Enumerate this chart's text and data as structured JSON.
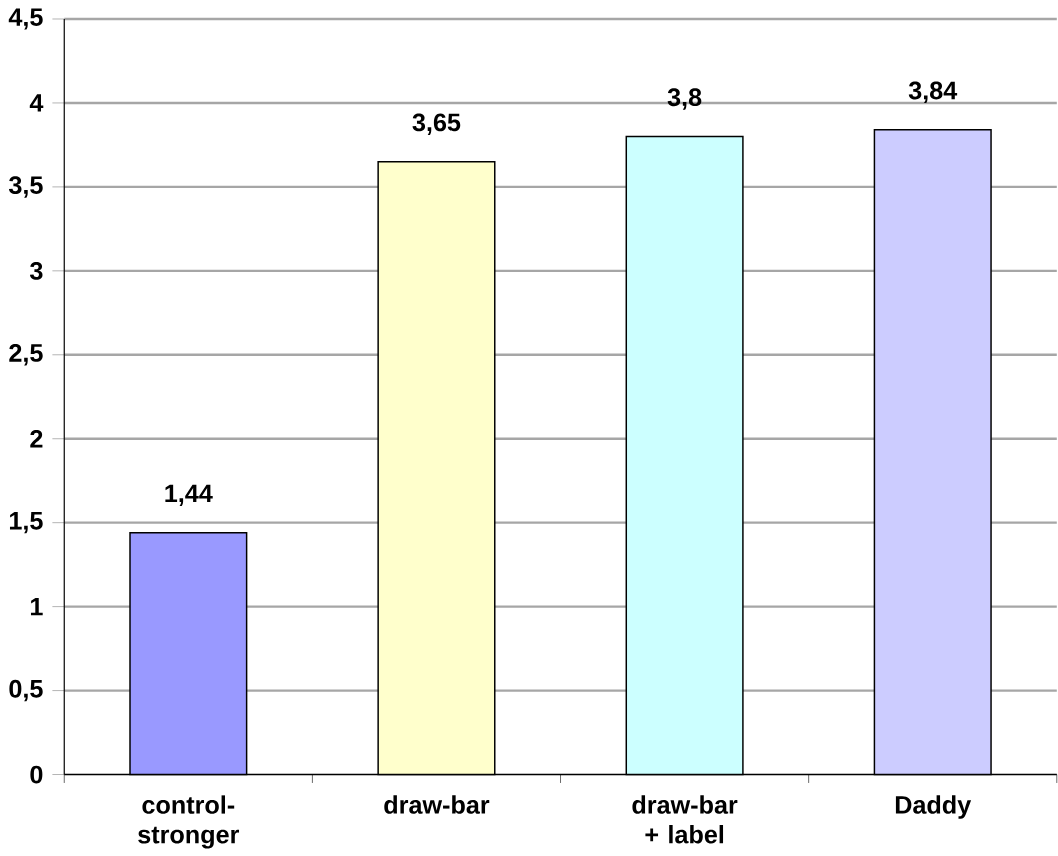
{
  "chart_data": {
    "type": "bar",
    "categories": [
      "control-stronger",
      "draw-bar",
      "draw-bar + label",
      "Daddy"
    ],
    "values": [
      1.44,
      3.65,
      3.8,
      3.84
    ],
    "colors": [
      "#9999ff",
      "#ffffcc",
      "#ccffff",
      "#ccccff"
    ],
    "value_labels": [
      "1,44",
      "3,65",
      "3,8",
      "3,84"
    ],
    "ylim": [
      0,
      4.5
    ],
    "yticks": [
      0,
      {
        "value": 0.5,
        "label": "0,5"
      },
      1,
      {
        "value": 1.5,
        "label": "1,5"
      },
      2,
      {
        "value": 2.5,
        "label": "2,5"
      },
      3,
      {
        "value": 3.5,
        "label": "3,5"
      },
      4,
      {
        "value": 4.5,
        "label": "4,5"
      }
    ],
    "grid": "y"
  }
}
